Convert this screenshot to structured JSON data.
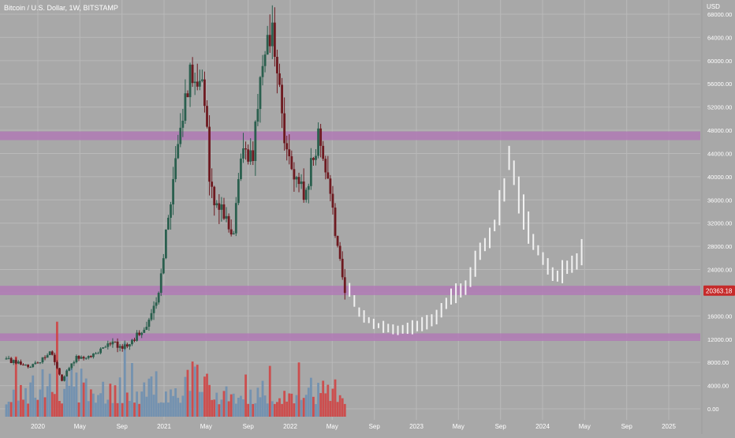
{
  "title": "Bitcoin / U.S. Dollar, 1W, BITSTAMP",
  "currency": "USD",
  "last_price": "20363.18",
  "colors": {
    "background": "#a8a8a8",
    "grid": "#b9b9b9",
    "up": "#2a5f4e",
    "down": "#6e1a20",
    "projection": "#f2f2f2",
    "zone": "#b07ab5",
    "vol_up": "#6e8fb0",
    "vol_down": "#cf4444",
    "price_badge": "#c62a2a",
    "label_text": "#ffffff"
  },
  "chart_data": {
    "type": "candlestick",
    "y_axis": {
      "min": 0,
      "max": 68000,
      "ticks": [
        "0.00",
        "4000.00",
        "8000.00",
        "12000.00",
        "16000.00",
        "20000.00",
        "24000.00",
        "28000.00",
        "32000.00",
        "36000.00",
        "40000.00",
        "44000.00",
        "48000.00",
        "52000.00",
        "56000.00",
        "60000.00",
        "64000.00",
        "68000.00"
      ]
    },
    "x_axis": {
      "ticks": [
        {
          "label": "2020",
          "t": 2020.0
        },
        {
          "label": "May",
          "t": 2020.333
        },
        {
          "label": "Sep",
          "t": 2020.667
        },
        {
          "label": "2021",
          "t": 2021.0
        },
        {
          "label": "May",
          "t": 2021.333
        },
        {
          "label": "Sep",
          "t": 2021.667
        },
        {
          "label": "2022",
          "t": 2022.0
        },
        {
          "label": "May",
          "t": 2022.333
        },
        {
          "label": "Sep",
          "t": 2022.667
        },
        {
          "label": "2023",
          "t": 2023.0
        },
        {
          "label": "May",
          "t": 2023.333
        },
        {
          "label": "Sep",
          "t": 2023.667
        },
        {
          "label": "2024",
          "t": 2024.0
        },
        {
          "label": "May",
          "t": 2024.333
        },
        {
          "label": "Sep",
          "t": 2024.667
        },
        {
          "label": "2025",
          "t": 2025.0
        }
      ],
      "range": [
        2019.7,
        2025.25
      ]
    },
    "zones": [
      {
        "low": 46300,
        "high": 47800
      },
      {
        "low": 19600,
        "high": 21200
      },
      {
        "low": 11700,
        "high": 13000
      }
    ],
    "historical_path": [
      [
        2019.75,
        8500
      ],
      [
        2019.95,
        7300
      ],
      [
        2020.1,
        9800
      ],
      [
        2020.19,
        5000
      ],
      [
        2020.3,
        8800
      ],
      [
        2020.45,
        9300
      ],
      [
        2020.58,
        11400
      ],
      [
        2020.7,
        10600
      ],
      [
        2020.85,
        14000
      ],
      [
        2020.95,
        19000
      ],
      [
        2021.05,
        36000
      ],
      [
        2021.12,
        48000
      ],
      [
        2021.22,
        58000
      ],
      [
        2021.3,
        57000
      ],
      [
        2021.38,
        36000
      ],
      [
        2021.47,
        33000
      ],
      [
        2021.55,
        31000
      ],
      [
        2021.62,
        47000
      ],
      [
        2021.7,
        43000
      ],
      [
        2021.79,
        61000
      ],
      [
        2021.86,
        64000
      ],
      [
        2021.95,
        47000
      ],
      [
        2022.04,
        41000
      ],
      [
        2022.12,
        38000
      ],
      [
        2022.22,
        46500
      ],
      [
        2022.3,
        39000
      ],
      [
        2022.36,
        30000
      ],
      [
        2022.44,
        20363
      ]
    ],
    "projection_path": [
      [
        2022.47,
        20500
      ],
      [
        2022.55,
        16500
      ],
      [
        2022.67,
        14500
      ],
      [
        2022.85,
        13500
      ],
      [
        2023.0,
        14200
      ],
      [
        2023.15,
        15500
      ],
      [
        2023.28,
        19500
      ],
      [
        2023.4,
        21000
      ],
      [
        2023.5,
        27000
      ],
      [
        2023.6,
        30000
      ],
      [
        2023.7,
        38000
      ],
      [
        2023.74,
        44000
      ],
      [
        2023.82,
        36000
      ],
      [
        2023.92,
        29000
      ],
      [
        2024.0,
        26000
      ],
      [
        2024.1,
        22500
      ],
      [
        2024.2,
        24500
      ],
      [
        2024.28,
        25500
      ],
      [
        2024.33,
        28000
      ]
    ],
    "volume_max": 16000
  }
}
